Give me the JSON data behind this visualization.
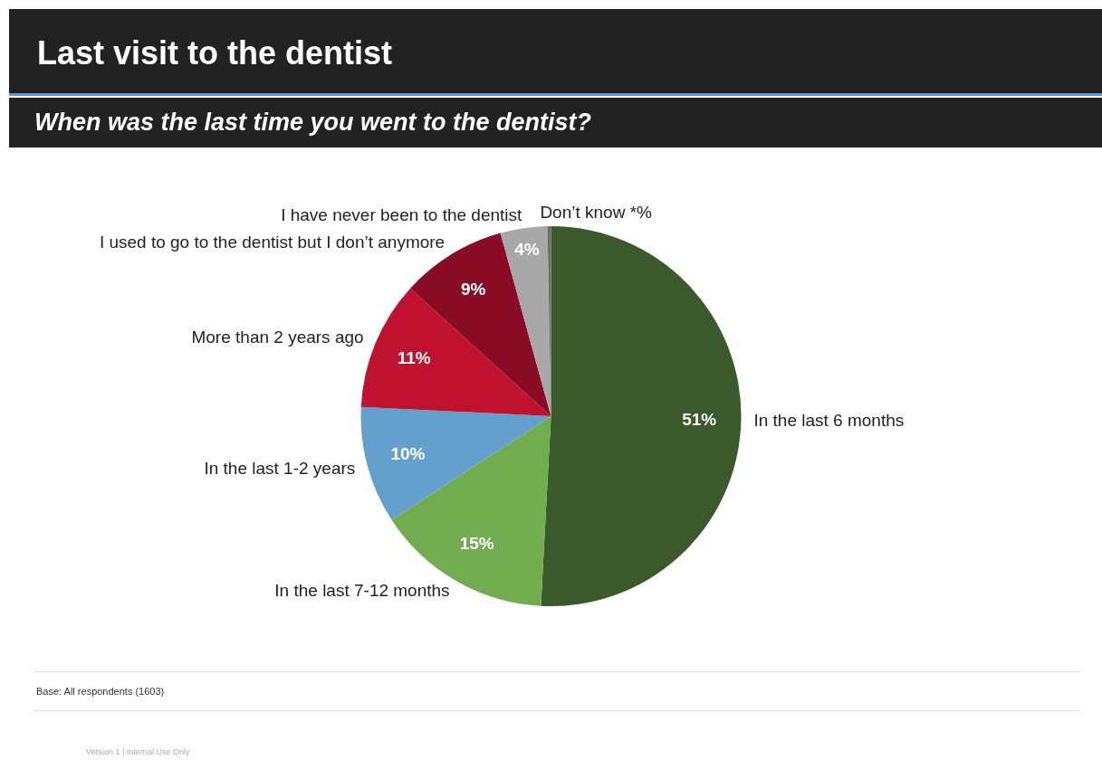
{
  "chart_data": {
    "type": "pie",
    "title": "Last visit to the dentist",
    "subtitle": "When was the last time you went to the dentist?",
    "categories": [
      "In the last 6 months",
      "In the last 7-12 months",
      "In the last 1-2 years",
      "More than 2 years ago",
      "I used to go to the dentist but I don’t anymore",
      "I have never been to the dentist",
      "Don’t know *%"
    ],
    "values": [
      51,
      15,
      10,
      11,
      9,
      4,
      0.3
    ],
    "value_labels": [
      "51%",
      "15%",
      "10%",
      "11%",
      "9%",
      "4%",
      null
    ],
    "colors": [
      "#3a5a2b",
      "#71ad4f",
      "#64a0cd",
      "#c0122f",
      "#8a0c24",
      "#a8a8a8",
      "#6e6e6e"
    ],
    "legend": false,
    "annotations": [
      "Base: All respondents (1603)",
      "Version 1 | Internal Use Only"
    ]
  }
}
